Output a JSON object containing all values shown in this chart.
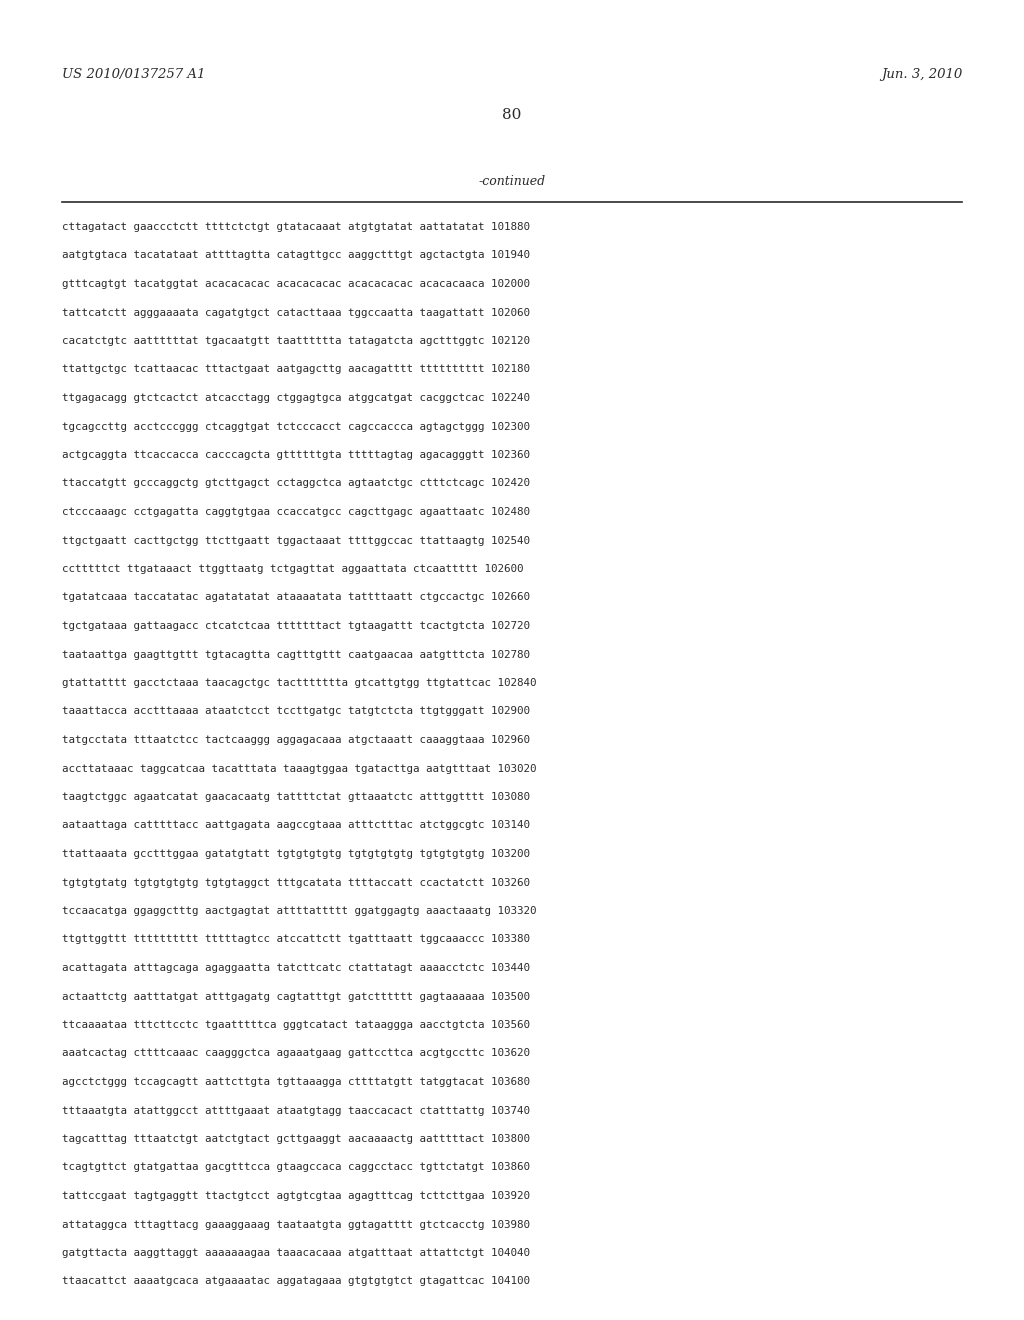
{
  "header_left": "US 2010/0137257 A1",
  "header_right": "Jun. 3, 2010",
  "page_number": "80",
  "continued_label": "-continued",
  "background_color": "#ffffff",
  "text_color": "#2b2b2b",
  "sequence_lines": [
    "cttagatact gaaccctctt ttttctctgt gtatacaaat atgtgtatat aattatatat 101880",
    "aatgtgtaca tacatataat attttagtta catagttgcc aaggctttgt agctactgta 101940",
    "gtttcagtgt tacatggtat acacacacac acacacacac acacacacac acacacaaca 102000",
    "tattcatctt agggaaaata cagatgtgct catacttaaa tggccaatta taagattatt 102060",
    "cacatctgtc aattttttat tgacaatgtt taatttttta tatagatcta agctttggtc 102120",
    "ttattgctgc tcattaacac tttactgaat aatgagcttg aacagatttt tttttttttt 102180",
    "ttgagacagg gtctcactct atcacctagg ctggagtgca atggcatgat cacggctcac 102240",
    "tgcagccttg acctcccggg ctcaggtgat tctcccacct cagccaccca agtagctggg 102300",
    "actgcaggta ttcaccacca cacccagcta gttttttgta tttttagtag agacagggtt 102360",
    "ttaccatgtt gcccaggctg gtcttgagct cctaggctca agtaatctgc ctttctcagc 102420",
    "ctcccaaagc cctgagatta caggtgtgaa ccaccatgcc cagcttgagc agaattaatc 102480",
    "ttgctgaatt cacttgctgg ttcttgaatt tggactaaat ttttggccac ttattaagtg 102540",
    "cctttttct ttgataaact ttggttaatg tctgagttat aggaattata ctcaattttt 102600",
    "tgatatcaaa taccatatac agatatatat ataaaatata tattttaatt ctgccactgc 102660",
    "tgctgataaa gattaagacc ctcatctcaa tttttttact tgtaagattt tcactgtcta 102720",
    "taataattga gaagttgttt tgtacagtta cagtttgttt caatgaacaa aatgtttcta 102780",
    "gtattatttt gacctctaaa taacagctgc tacttttttta gtcattgtgg ttgtattcac 102840",
    "taaattacca acctttaaaa ataatctcct tccttgatgc tatgtctcta ttgtgggatt 102900",
    "tatgcctata tttaatctcc tactcaaggg aggagacaaa atgctaaatt caaaggtaaa 102960",
    "accttataaac taggcatcaa tacatttata taaagtggaa tgatacttga aatgtttaat 103020",
    "taagtctggc agaatcatat gaacacaatg tattttctat gttaaatctc atttggtttt 103080",
    "aataattaga catttttacc aattgagata aagccgtaaa atttctttac atctggcgtc 103140",
    "ttattaaata gcctttggaa gatatgtatt tgtgtgtgtg tgtgtgtgtg tgtgtgtgtg 103200",
    "tgtgtgtatg tgtgtgtgtg tgtgtaggct tttgcatata ttttaccatt ccactatctt 103260",
    "tccaacatga ggaggctttg aactgagtat attttattttt ggatggagtg aaactaaatg 103320",
    "ttgttggttt tttttttttt tttttagtcc atccattctt tgatttaatt tggcaaaccc 103380",
    "acattagata atttagcaga agaggaatta tatcttcatc ctattatagt aaaacctctc 103440",
    "actaattctg aatttatgat atttgagatg cagtatttgt gatctttttt gagtaaaaaa 103500",
    "ttcaaaataa tttcttcctc tgaatttttca gggtcatact tataaggga aacctgtcta 103560",
    "aaatcactag cttttcaaac caagggctca agaaatgaag gattccttca acgtgccttc 103620",
    "agcctctggg tccagcagtt aattcttgta tgttaaagga cttttatgtt tatggtacat 103680",
    "tttaaatgta atattggcct attttgaaat ataatgtagg taaccacact ctatttattg 103740",
    "tagcatttag tttaatctgt aatctgtact gcttgaaggt aacaaaactg aatttttact 103800",
    "tcagtgttct gtatgattaa gacgtttcca gtaagccaca caggcctacc tgttctatgt 103860",
    "tattccgaat tagtgaggtt ttactgtcct agtgtcgtaa agagtttcag tcttcttgaa 103920",
    "attataggca tttagttacg gaaaggaaag taataatgta ggtagatttt gtctcacctg 103980",
    "gatgttacta aaggttaggt aaaaaaagaa taaacacaaa atgatttaat attattctgt 104040",
    "ttaacattct aaaatgcaca atgaaaatac aggatagaaa gtgtgtgtct gtagattcac 104100"
  ]
}
